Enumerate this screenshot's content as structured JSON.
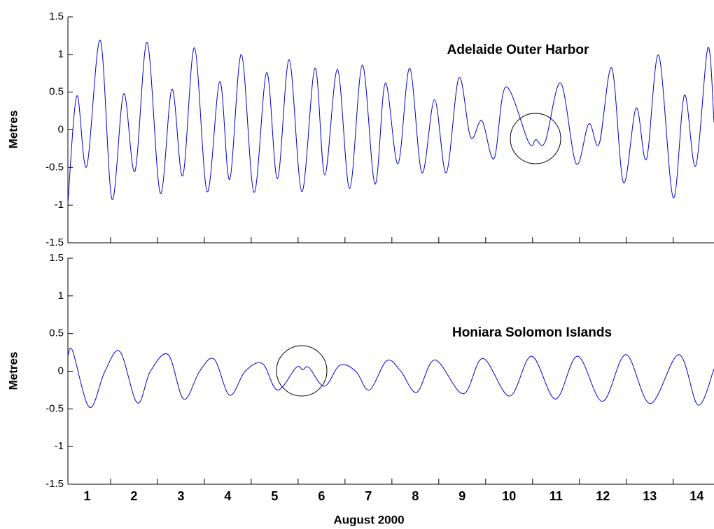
{
  "chart_data": [
    {
      "type": "line",
      "title": "Adelaide Outer Harbor",
      "y_label": "Metres",
      "xlim": [
        0.09,
        13.87
      ],
      "ylim": [
        -1.5,
        1.5
      ],
      "yticks": [
        1.5,
        1,
        0.5,
        0,
        -0.5,
        -1,
        -1.5
      ],
      "xtick_marks": [
        1,
        2,
        3,
        4,
        5,
        6,
        7,
        8,
        9,
        10,
        11,
        12,
        13
      ],
      "series": [
        {
          "name": "Adelaide Outer Harbor",
          "color": "#0000cc",
          "x": [
            0.09,
            0.28,
            0.49,
            0.78,
            1.03,
            1.28,
            1.52,
            1.78,
            2.06,
            2.31,
            2.54,
            2.79,
            3.06,
            3.33,
            3.54,
            3.79,
            4.06,
            4.33,
            4.56,
            4.81,
            5.08,
            5.36,
            5.57,
            5.84,
            6.1,
            6.37,
            6.64,
            6.86,
            7.13,
            7.38,
            7.64,
            7.91,
            8.16,
            8.43,
            8.68,
            8.92,
            9.18,
            9.43,
            9.92,
            10.07,
            10.27,
            10.6,
            10.93,
            11.2,
            11.42,
            11.69,
            11.94,
            12.21,
            12.43,
            12.69,
            13.0,
            13.24,
            13.48,
            13.74,
            13.87
          ],
          "values": [
            -0.97,
            0.45,
            -0.49,
            1.19,
            -0.92,
            0.48,
            -0.55,
            1.16,
            -0.84,
            0.54,
            -0.61,
            1.09,
            -0.82,
            0.64,
            -0.66,
            1.0,
            -0.83,
            0.76,
            -0.65,
            0.93,
            -0.82,
            0.82,
            -0.6,
            0.8,
            -0.78,
            0.86,
            -0.72,
            0.62,
            -0.45,
            0.82,
            -0.57,
            0.4,
            -0.57,
            0.69,
            -0.1,
            0.12,
            -0.38,
            0.57,
            -0.17,
            -0.13,
            -0.16,
            0.62,
            -0.45,
            0.08,
            -0.19,
            0.82,
            -0.7,
            0.29,
            -0.39,
            0.99,
            -0.9,
            0.46,
            -0.48,
            1.09,
            0.1
          ]
        }
      ]
    },
    {
      "type": "line",
      "title": "Honiara Solomon Islands",
      "y_label": "Metres",
      "x_label": "August 2000",
      "xlim": [
        0.09,
        13.87
      ],
      "ylim": [
        -1.5,
        1.5
      ],
      "yticks": [
        1.5,
        1,
        0.5,
        0,
        -0.5,
        -1,
        -1.5
      ],
      "xtick_marks": [
        1,
        2,
        3,
        4,
        5,
        6,
        7,
        8,
        9,
        10,
        11,
        12,
        13
      ],
      "xticks": [
        {
          "value": 0.5,
          "label": "1"
        },
        {
          "value": 1.5,
          "label": "2"
        },
        {
          "value": 2.5,
          "label": "3"
        },
        {
          "value": 3.5,
          "label": "4"
        },
        {
          "value": 4.5,
          "label": "5"
        },
        {
          "value": 5.5,
          "label": "6"
        },
        {
          "value": 6.5,
          "label": "7"
        },
        {
          "value": 7.5,
          "label": "8"
        },
        {
          "value": 8.5,
          "label": "9"
        },
        {
          "value": 9.5,
          "label": "10"
        },
        {
          "value": 10.5,
          "label": "11"
        },
        {
          "value": 11.5,
          "label": "12"
        },
        {
          "value": 12.5,
          "label": "13"
        },
        {
          "value": 13.5,
          "label": "14"
        }
      ],
      "series": [
        {
          "name": "Honiara Solomon Islands",
          "color": "#0000cc",
          "x": [
            0.09,
            0.19,
            0.55,
            0.88,
            1.2,
            1.57,
            1.85,
            2.23,
            2.56,
            2.9,
            3.21,
            3.54,
            3.87,
            4.24,
            4.56,
            4.96,
            5.1,
            5.23,
            5.56,
            5.89,
            6.23,
            6.52,
            6.89,
            7.19,
            7.53,
            7.92,
            8.52,
            8.94,
            9.51,
            9.98,
            10.49,
            10.96,
            11.49,
            11.99,
            12.51,
            13.12,
            13.53,
            13.87
          ],
          "values": [
            0.2,
            0.27,
            -0.48,
            0.0,
            0.26,
            -0.42,
            0.0,
            0.22,
            -0.37,
            0.0,
            0.16,
            -0.32,
            0.0,
            0.1,
            -0.25,
            0.05,
            0.02,
            0.05,
            -0.2,
            0.08,
            0.0,
            -0.25,
            0.14,
            0.0,
            -0.28,
            0.15,
            -0.3,
            0.17,
            -0.33,
            0.2,
            -0.37,
            0.2,
            -0.4,
            0.22,
            -0.43,
            0.22,
            -0.45,
            0.03
          ]
        }
      ]
    }
  ]
}
